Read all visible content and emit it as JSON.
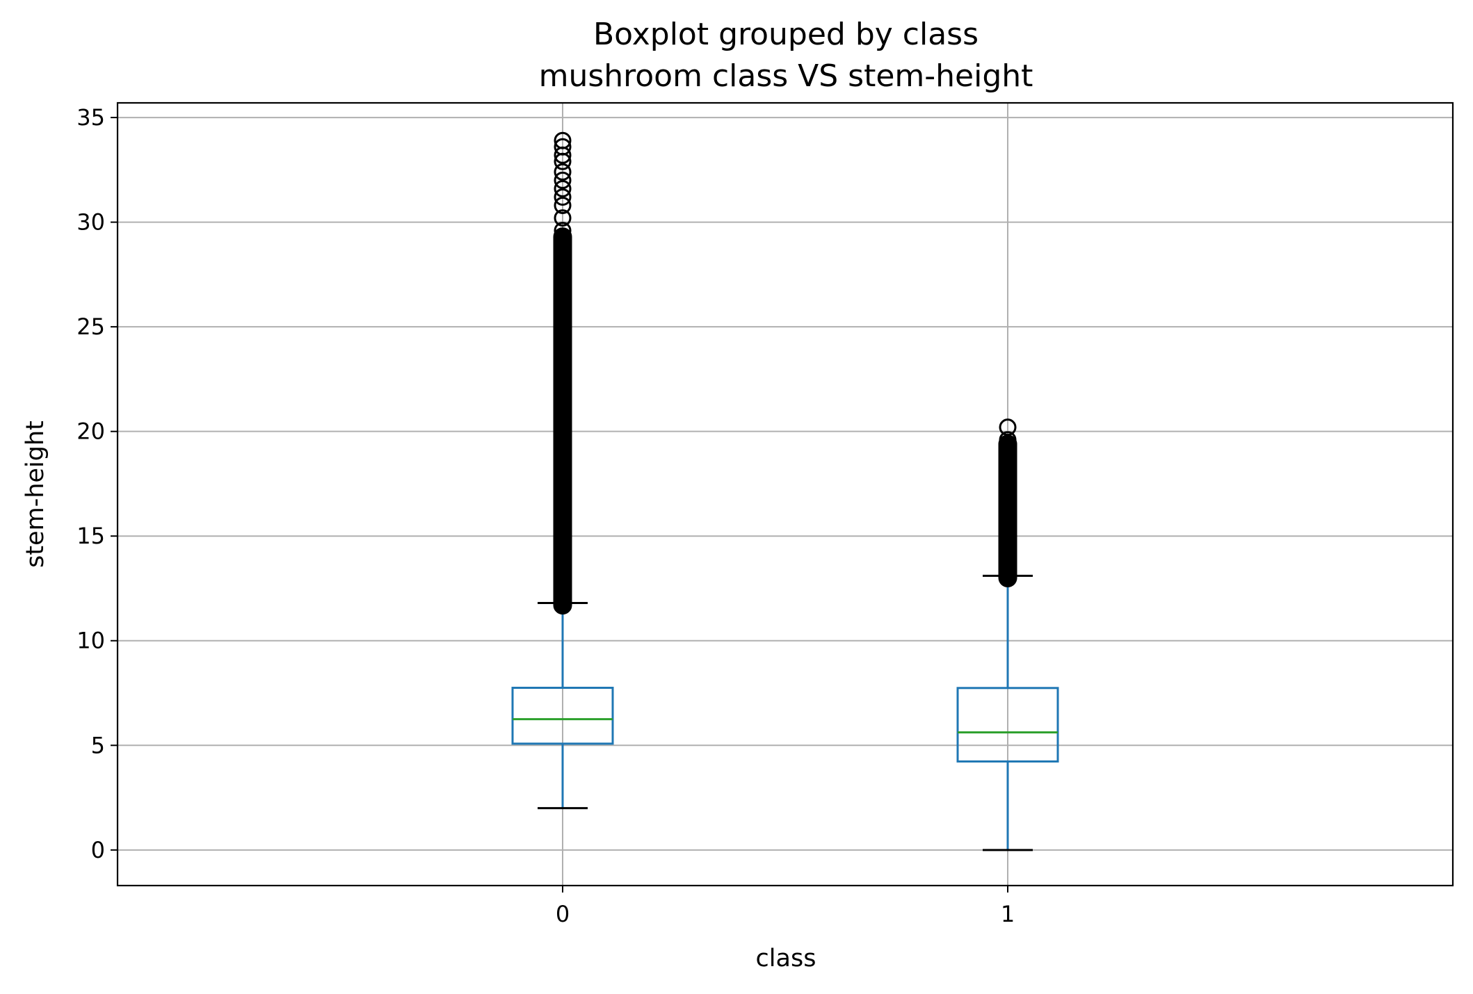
{
  "chart_data": {
    "type": "box",
    "title": "Boxplot grouped by class",
    "subtitle": "mushroom class VS stem-height",
    "xlabel": "class",
    "ylabel": "stem-height",
    "ylim": [
      -1.7,
      35.7
    ],
    "yticks": [
      0,
      5,
      10,
      15,
      20,
      25,
      30,
      35
    ],
    "grid": true,
    "categories": [
      "0",
      "1"
    ],
    "boxes": [
      {
        "category": "0",
        "whisker_low": 2.0,
        "q1": 5.08,
        "median": 6.25,
        "q3": 7.75,
        "whisker_high": 11.8,
        "outliers_dense_range": [
          11.7,
          29.3
        ],
        "outliers_sparse": [
          29.6,
          30.2,
          30.8,
          31.2,
          31.6,
          32.0,
          32.4,
          32.9,
          33.2,
          33.6,
          33.9
        ]
      },
      {
        "category": "1",
        "whisker_low": 0.0,
        "q1": 4.23,
        "median": 5.62,
        "q3": 7.74,
        "whisker_high": 13.1,
        "outliers_dense_range": [
          13.0,
          19.4
        ],
        "outliers_sparse": [
          19.6,
          20.2
        ]
      }
    ],
    "colors": {
      "box": "#1f77b4",
      "median": "#2ca02c",
      "whisker_cap": "#000000",
      "flier": "#000000",
      "grid": "#b0b0b0"
    }
  }
}
